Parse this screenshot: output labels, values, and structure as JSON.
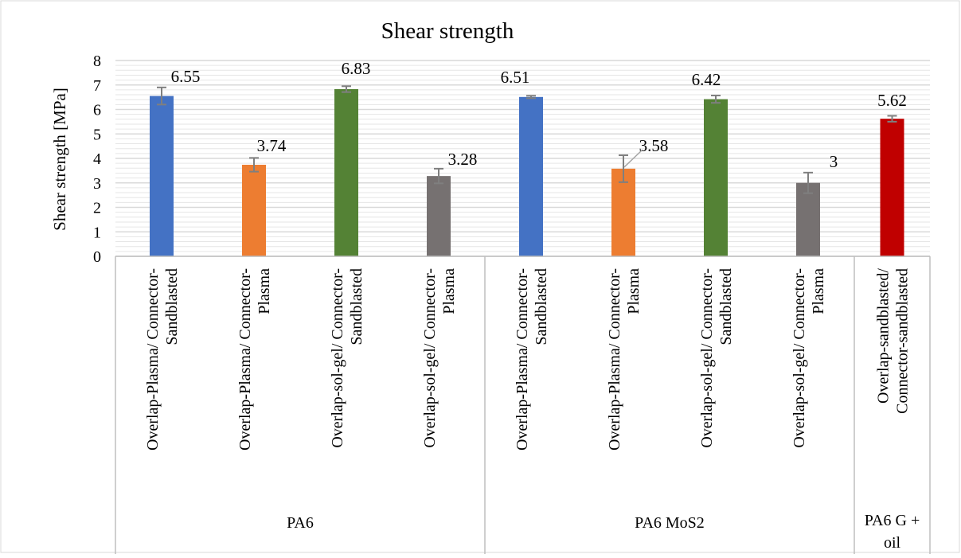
{
  "chart_data": {
    "type": "bar",
    "title": "Shear strength",
    "ylabel": "Shear strength  [MPa]",
    "xlabel": "",
    "ylim": [
      0,
      8
    ],
    "yticks": [
      0,
      1,
      2,
      3,
      4,
      5,
      6,
      7,
      8
    ],
    "grid": true,
    "legend": "none",
    "categories": [
      "Overlap-Plasma/ Connector-Sandblasted",
      "Overlap-Plasma/ Connector-Plasma",
      "Overlap-sol-gel/ Connector-Sandblasted",
      "Overlap-sol-gel/ Connector-Plasma",
      "Overlap-Plasma/ Connector-Sandblasted",
      "Overlap-Plasma/ Connector-Plasma",
      "Overlap-sol-gel/ Connector-Sandblasted",
      "Overlap-sol-gel/ Connector-Plasma",
      "Overlap-sandblasted/ Connector-sandblasted"
    ],
    "category_lines": [
      [
        "Overlap-Plasma/ Connector-",
        "Sandblasted"
      ],
      [
        "Overlap-Plasma/ Connector-",
        "Plasma"
      ],
      [
        "Overlap-sol-gel/ Connector-",
        "Sandblasted"
      ],
      [
        "Overlap-sol-gel/ Connector-",
        "Plasma"
      ],
      [
        "Overlap-Plasma/ Connector-",
        "Sandblasted"
      ],
      [
        "Overlap-Plasma/ Connector-",
        "Plasma"
      ],
      [
        "Overlap-sol-gel/ Connector-",
        "Sandblasted"
      ],
      [
        "Overlap-sol-gel/ Connector-",
        "Plasma"
      ],
      [
        "Overlap-sandblasted/",
        "Connector-sandblasted"
      ]
    ],
    "groups": [
      {
        "label": "PA6",
        "lines": [
          "PA6"
        ],
        "count": 4
      },
      {
        "label": "PA6 MoS2",
        "lines": [
          "PA6 MoS2"
        ],
        "count": 4
      },
      {
        "label": "PA6 G + oil",
        "lines": [
          "PA6 G +",
          "oil"
        ],
        "count": 1
      }
    ],
    "values": [
      6.55,
      3.74,
      6.83,
      3.28,
      6.51,
      3.58,
      6.42,
      3,
      5.62
    ],
    "error": [
      0.35,
      0.28,
      0.12,
      0.3,
      0.05,
      0.55,
      0.15,
      0.42,
      0.12
    ],
    "data_labels": [
      "6.55",
      "3.74",
      "6.83",
      "3.28",
      "6.51",
      "3.58",
      "6.42",
      "3",
      "5.62"
    ],
    "colors": [
      "#4472c4",
      "#ed7d31",
      "#548235",
      "#767171",
      "#4472c4",
      "#ed7d31",
      "#548235",
      "#767171",
      "#c00000"
    ],
    "error_color": "#7f7f7f",
    "grid_color": "#d9d9d9",
    "axis_color": "#bfbfbf"
  }
}
